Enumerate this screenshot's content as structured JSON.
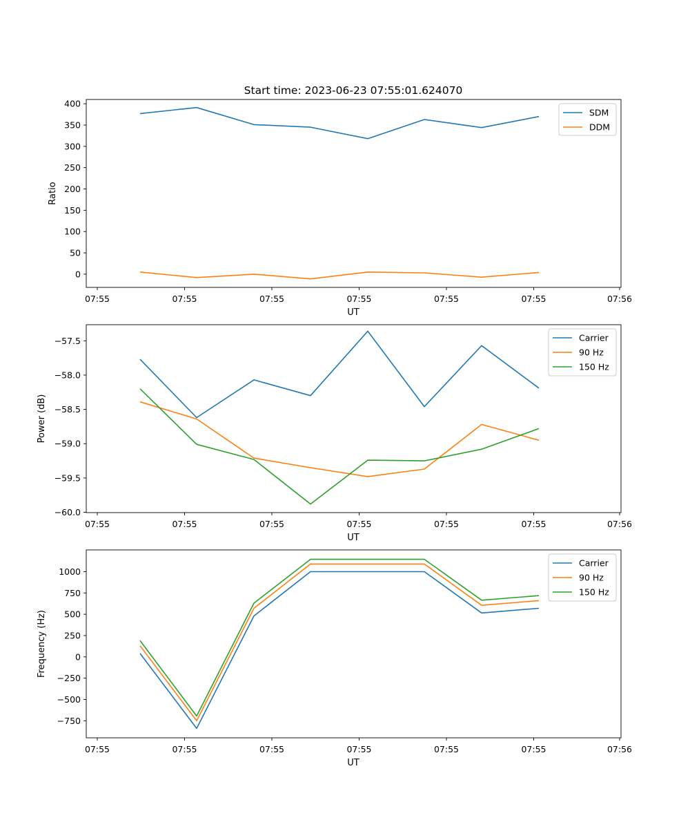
{
  "title": "Start time: 2023-06-23 07:55:01.624070",
  "colors": {
    "blue": "#1f77b4",
    "orange": "#ff7f0e",
    "green": "#2ca02c"
  },
  "chart_data": [
    {
      "type": "line",
      "title": "Start time: 2023-06-23 07:55:01.624070",
      "xlabel": "UT",
      "ylabel": "Ratio",
      "x_tick_labels": [
        "07:55",
        "07:55",
        "07:55",
        "07:55",
        "07:55",
        "07:55",
        "07:56"
      ],
      "y_ticks": [
        0,
        50,
        100,
        150,
        200,
        250,
        300,
        350,
        400
      ],
      "ylim": [
        -31,
        410
      ],
      "grid": false,
      "legend_position": "top-right",
      "series": [
        {
          "name": "SDM",
          "color": "#1f77b4",
          "values": [
            377,
            391,
            351,
            345,
            318,
            363,
            344,
            370
          ]
        },
        {
          "name": "DDM",
          "color": "#ff7f0e",
          "values": [
            5,
            -8,
            0,
            -11,
            5,
            3,
            -7,
            4
          ]
        }
      ]
    },
    {
      "type": "line",
      "title": "",
      "xlabel": "UT",
      "ylabel": "Power (dB)",
      "x_tick_labels": [
        "07:55",
        "07:55",
        "07:55",
        "07:55",
        "07:55",
        "07:55",
        "07:56"
      ],
      "y_ticks": [
        -60.0,
        -59.5,
        -59.0,
        -58.5,
        -58.0,
        -57.5
      ],
      "y_tick_labels": [
        "−60.0",
        "−59.5",
        "−59.0",
        "−58.5",
        "−58.0",
        "−57.5"
      ],
      "ylim": [
        -60.005,
        -57.265
      ],
      "grid": false,
      "legend_position": "top-right",
      "series": [
        {
          "name": "Carrier",
          "color": "#1f77b4",
          "values": [
            -57.77,
            -58.62,
            -58.07,
            -58.3,
            -57.36,
            -58.46,
            -57.57,
            -58.19
          ]
        },
        {
          "name": "90 Hz",
          "color": "#ff7f0e",
          "values": [
            -58.39,
            -58.64,
            -59.21,
            -59.35,
            -59.48,
            -59.37,
            -58.72,
            -58.95
          ]
        },
        {
          "name": "150 Hz",
          "color": "#2ca02c",
          "values": [
            -58.2,
            -59.01,
            -59.23,
            -59.88,
            -59.24,
            -59.25,
            -59.08,
            -58.78
          ]
        }
      ]
    },
    {
      "type": "line",
      "title": "",
      "xlabel": "UT",
      "ylabel": "Frequency (Hz)",
      "x_tick_labels": [
        "07:55",
        "07:55",
        "07:55",
        "07:55",
        "07:55",
        "07:55",
        "07:56"
      ],
      "y_ticks": [
        -750,
        -500,
        -250,
        0,
        250,
        500,
        750,
        1000
      ],
      "y_tick_labels": [
        "−750",
        "−500",
        "−250",
        "0",
        "250",
        "500",
        "750",
        "1000"
      ],
      "ylim": [
        -950,
        1255
      ],
      "grid": false,
      "legend_position": "top-right",
      "series": [
        {
          "name": "Carrier",
          "color": "#1f77b4",
          "values": [
            40,
            -840,
            480,
            1000,
            1000,
            1000,
            515,
            570
          ]
        },
        {
          "name": "90 Hz",
          "color": "#ff7f0e",
          "values": [
            130,
            -750,
            570,
            1090,
            1090,
            1090,
            605,
            660
          ]
        },
        {
          "name": "150 Hz",
          "color": "#2ca02c",
          "values": [
            190,
            -695,
            630,
            1145,
            1145,
            1145,
            665,
            718
          ]
        }
      ]
    }
  ]
}
